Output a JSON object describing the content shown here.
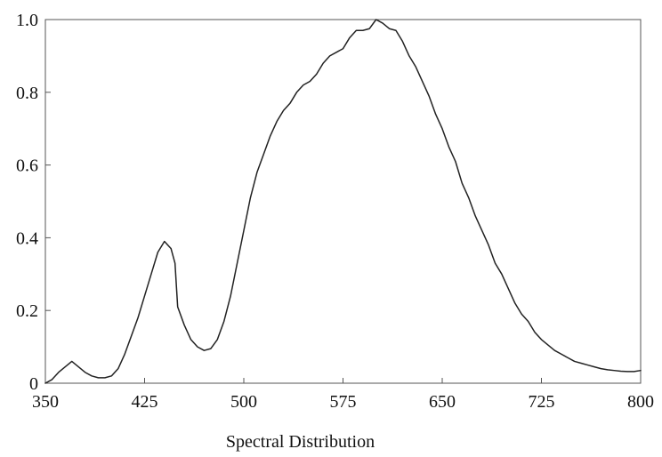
{
  "chart_data": {
    "type": "line",
    "title": "",
    "xlabel": "Spectral Distribution",
    "ylabel": "",
    "xlim": [
      350,
      800
    ],
    "ylim": [
      0,
      1.0
    ],
    "grid": false,
    "x_ticks": [
      350,
      425,
      500,
      575,
      650,
      725,
      800
    ],
    "y_ticks": [
      0,
      0.2,
      0.4,
      0.6,
      0.8,
      1.0
    ],
    "x_tick_labels": [
      "350",
      "425",
      "500",
      "575",
      "650",
      "725",
      "800"
    ],
    "y_tick_labels": [
      "0",
      "0.2",
      "0.4",
      "0.6",
      "0.8",
      "1.0"
    ],
    "series": [
      {
        "color": "#222222",
        "x": [
          350,
          355,
          360,
          365,
          370,
          375,
          380,
          385,
          390,
          395,
          400,
          405,
          410,
          415,
          420,
          425,
          430,
          435,
          440,
          445,
          448,
          450,
          455,
          460,
          465,
          470,
          475,
          480,
          485,
          490,
          495,
          500,
          505,
          510,
          515,
          520,
          525,
          530,
          535,
          540,
          545,
          550,
          555,
          560,
          565,
          570,
          575,
          580,
          585,
          590,
          595,
          600,
          605,
          610,
          615,
          620,
          625,
          630,
          635,
          640,
          645,
          650,
          655,
          660,
          665,
          670,
          675,
          680,
          685,
          690,
          695,
          700,
          705,
          710,
          715,
          720,
          725,
          730,
          735,
          740,
          745,
          750,
          755,
          760,
          765,
          770,
          775,
          780,
          785,
          790,
          795,
          800
        ],
        "values": [
          0.0,
          0.01,
          0.03,
          0.045,
          0.06,
          0.045,
          0.03,
          0.02,
          0.015,
          0.015,
          0.02,
          0.04,
          0.08,
          0.13,
          0.18,
          0.24,
          0.3,
          0.36,
          0.39,
          0.37,
          0.33,
          0.21,
          0.16,
          0.12,
          0.1,
          0.09,
          0.095,
          0.12,
          0.17,
          0.24,
          0.33,
          0.42,
          0.51,
          0.58,
          0.63,
          0.68,
          0.72,
          0.75,
          0.77,
          0.8,
          0.82,
          0.83,
          0.85,
          0.88,
          0.9,
          0.91,
          0.92,
          0.95,
          0.97,
          0.97,
          0.975,
          1.0,
          0.99,
          0.975,
          0.97,
          0.94,
          0.9,
          0.87,
          0.83,
          0.79,
          0.74,
          0.7,
          0.65,
          0.61,
          0.55,
          0.51,
          0.46,
          0.42,
          0.38,
          0.33,
          0.3,
          0.26,
          0.22,
          0.19,
          0.17,
          0.14,
          0.12,
          0.105,
          0.09,
          0.08,
          0.07,
          0.06,
          0.055,
          0.05,
          0.045,
          0.04,
          0.037,
          0.035,
          0.033,
          0.032,
          0.032,
          0.035
        ]
      }
    ]
  }
}
